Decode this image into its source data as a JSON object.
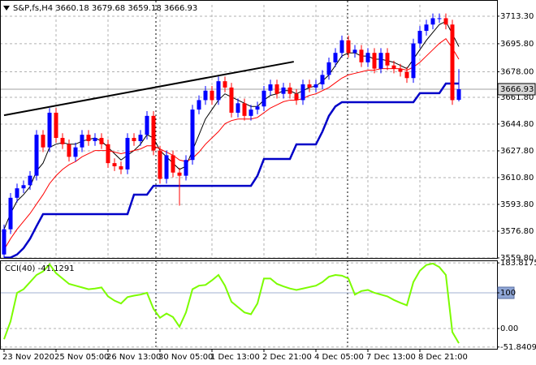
{
  "chart_data": [
    {
      "type": "candlestick",
      "title": "S&P,fs,H4  3660.18 3679.68 3659.18 3666.93",
      "categories": [
        "23 Nov 2020",
        null,
        null,
        null,
        null,
        null,
        null,
        null,
        "25 Nov 05:00",
        null,
        null,
        null,
        null,
        null,
        null,
        null,
        "26 Nov 13:00",
        null,
        null,
        null,
        null,
        null,
        null,
        null,
        "30 Nov 05:00",
        null,
        null,
        null,
        null,
        null,
        null,
        null,
        "1 Dec 13:00",
        null,
        null,
        null,
        null,
        null,
        null,
        null,
        "2 Dec 21:00",
        null,
        null,
        null,
        null,
        null,
        null,
        null,
        "4 Dec 05:00",
        null,
        null,
        null,
        null,
        null,
        null,
        null,
        "7 Dec 13:00",
        null,
        null,
        null,
        null,
        null,
        null,
        null,
        "8 Dec 21:00",
        null,
        null,
        null,
        null,
        null,
        null
      ],
      "open": [
        3562,
        3578,
        3598,
        3604,
        3606,
        3612,
        3638,
        3630,
        3652,
        3636,
        3632,
        3624,
        3630,
        3638,
        3634,
        3636,
        3632,
        3620,
        3618,
        3616,
        3636,
        3634,
        3638,
        3650,
        3628,
        3610,
        3625,
        3614,
        3612,
        3622,
        3654,
        3660,
        3666,
        3660,
        3672,
        3668,
        3652,
        3658,
        3650,
        3654,
        3656,
        3666,
        3670,
        3664,
        3668,
        3664,
        3660,
        3670,
        3668,
        3670,
        3676,
        3684,
        3690,
        3698,
        3690,
        3692,
        3684,
        3690,
        3680,
        3690,
        3682,
        3680,
        3678,
        3674,
        3696,
        3704,
        3708,
        3712,
        3712,
        3708,
        3660.18
      ],
      "high": [
        3581,
        3601,
        3607,
        3609,
        3615,
        3641,
        3641,
        3655,
        3655,
        3639,
        3635,
        3633,
        3641,
        3641,
        3639,
        3639,
        3635,
        3623,
        3621,
        3639,
        3639,
        3641,
        3653,
        3653,
        3631,
        3628,
        3628,
        3617,
        3625,
        3657,
        3663,
        3669,
        3669,
        3675,
        3675,
        3671,
        3661,
        3661,
        3657,
        3659,
        3669,
        3673,
        3673,
        3671,
        3671,
        3667,
        3673,
        3673,
        3673,
        3679,
        3687,
        3693,
        3701,
        3701,
        3695,
        3695,
        3693,
        3693,
        3693,
        3693,
        3685,
        3683,
        3681,
        3699,
        3707,
        3711,
        3715,
        3715,
        3715,
        3711,
        3679.68
      ],
      "low": [
        3559,
        3575,
        3595,
        3601,
        3603,
        3609,
        3627,
        3627,
        3633,
        3629,
        3621,
        3621,
        3627,
        3631,
        3631,
        3629,
        3617,
        3615,
        3613,
        3613,
        3631,
        3631,
        3635,
        3625,
        3607,
        3607,
        3611,
        3593,
        3609,
        3619,
        3651,
        3657,
        3657,
        3657,
        3665,
        3649,
        3649,
        3647,
        3647,
        3651,
        3653,
        3663,
        3661,
        3661,
        3661,
        3657,
        3657,
        3665,
        3665,
        3667,
        3673,
        3681,
        3687,
        3687,
        3687,
        3681,
        3681,
        3677,
        3677,
        3679,
        3677,
        3675,
        3671,
        3671,
        3693,
        3701,
        3705,
        3709,
        3705,
        3657,
        3659.18
      ],
      "close": [
        3578,
        3598,
        3604,
        3606,
        3612,
        3638,
        3630,
        3652,
        3636,
        3632,
        3624,
        3630,
        3638,
        3634,
        3636,
        3632,
        3620,
        3618,
        3616,
        3636,
        3634,
        3638,
        3650,
        3628,
        3610,
        3625,
        3614,
        3612,
        3622,
        3654,
        3660,
        3666,
        3660,
        3672,
        3668,
        3652,
        3658,
        3650,
        3654,
        3656,
        3666,
        3670,
        3664,
        3668,
        3664,
        3660,
        3670,
        3668,
        3670,
        3676,
        3684,
        3690,
        3698,
        3690,
        3692,
        3684,
        3690,
        3680,
        3690,
        3682,
        3680,
        3678,
        3674,
        3696,
        3704,
        3708,
        3712,
        3712,
        3708,
        3660,
        3666.93
      ],
      "up_color": "#0000ff",
      "down_color": "#ff0000",
      "lines": [
        {
          "color": "#000000",
          "width": 1,
          "values": [
            3578,
            3588,
            3596,
            3600,
            3605,
            3615,
            3620,
            3630,
            3632,
            3633,
            3632,
            3632,
            3634,
            3635,
            3636,
            3634,
            3630,
            3626,
            3622,
            3625,
            3628,
            3632,
            3638,
            3636,
            3628,
            3624,
            3620,
            3616,
            3618,
            3628,
            3638,
            3648,
            3654,
            3660,
            3664,
            3662,
            3660,
            3658,
            3656,
            3656,
            3660,
            3663,
            3664,
            3666,
            3666,
            3664,
            3666,
            3668,
            3669,
            3672,
            3676,
            3682,
            3688,
            3690,
            3690,
            3688,
            3688,
            3686,
            3686,
            3685,
            3684,
            3682,
            3680,
            3686,
            3692,
            3698,
            3703,
            3708,
            3710,
            3702,
            3694
          ]
        },
        {
          "color": "#ff0000",
          "width": 1,
          "values": [
            3565,
            3572,
            3578,
            3583,
            3588,
            3594,
            3600,
            3607,
            3612,
            3616,
            3619,
            3621,
            3624,
            3626,
            3628,
            3628,
            3628,
            3627,
            3626,
            3627,
            3628,
            3629,
            3631,
            3631,
            3629,
            3627,
            3625,
            3622,
            3621,
            3623,
            3627,
            3632,
            3636,
            3640,
            3645,
            3647,
            3648,
            3648,
            3648,
            3649,
            3652,
            3655,
            3657,
            3659,
            3660,
            3660,
            3661,
            3663,
            3664,
            3666,
            3668,
            3671,
            3674,
            3676,
            3677,
            3678,
            3679,
            3679,
            3680,
            3680,
            3680,
            3680,
            3679,
            3681,
            3684,
            3688,
            3692,
            3696,
            3699,
            3693,
            3686
          ]
        },
        {
          "color": "#0000c8",
          "width": 2.5,
          "values": [
            3560,
            3560,
            3562,
            3566,
            3572,
            3580,
            3587.6,
            3587.6,
            3587.6,
            3587.6,
            3587.6,
            3587.6,
            3587.6,
            3587.6,
            3587.6,
            3587.6,
            3587.6,
            3587.6,
            3587.6,
            3587.6,
            3600,
            3600,
            3600,
            3605.6,
            3605.6,
            3605.6,
            3605.6,
            3605.6,
            3605.6,
            3605.6,
            3605.6,
            3605.6,
            3605.6,
            3605.6,
            3605.6,
            3605.6,
            3605.6,
            3605.6,
            3605.6,
            3612,
            3622.6,
            3622.6,
            3622.6,
            3622.6,
            3622.6,
            3631.9,
            3631.9,
            3631.9,
            3631.9,
            3640,
            3650,
            3656,
            3658.7,
            3658.7,
            3658.7,
            3658.7,
            3658.7,
            3658.7,
            3658.7,
            3658.7,
            3658.7,
            3658.7,
            3658.7,
            3658.7,
            3664.4,
            3664.4,
            3664.4,
            3664.4,
            3670.5,
            3670.5,
            3670.5
          ]
        }
      ],
      "trendline": {
        "x": [
          0,
          44.6
        ],
        "values": [
          3650.4,
          3684.4
        ],
        "color": "#000000"
      },
      "current_price": {
        "value": 3666.93,
        "label": "3666.93"
      },
      "ylim": [
        3559.8,
        3721.0
      ],
      "yticks": [
        {
          "value": 3713.3,
          "label": "3713.30"
        },
        {
          "value": 3695.8,
          "label": "3695.80"
        },
        {
          "value": 3678.0,
          "label": "3678.00"
        },
        {
          "value": 3661.8,
          "label": "3661.80"
        },
        {
          "value": 3644.8,
          "label": "3644.80"
        },
        {
          "value": 3627.8,
          "label": "3627.80"
        },
        {
          "value": 3610.8,
          "label": "3610.80"
        },
        {
          "value": 3593.8,
          "label": "3593.80"
        },
        {
          "value": 3576.8,
          "label": "3576.80"
        },
        {
          "value": 3559.8,
          "label": "3559.80"
        }
      ],
      "grid": true
    },
    {
      "type": "line",
      "title": "CCI(40) -41.1291",
      "values": [
        -30,
        20,
        100,
        110,
        130,
        150,
        160,
        180,
        155,
        140,
        125,
        120,
        115,
        110,
        112,
        115,
        90,
        78,
        70,
        88,
        92,
        95,
        100,
        55,
        30,
        42,
        32,
        5,
        45,
        110,
        120,
        122,
        135,
        150,
        120,
        75,
        60,
        45,
        40,
        70,
        140,
        140,
        125,
        118,
        112,
        108,
        112,
        116,
        120,
        130,
        145,
        150,
        148,
        140,
        95,
        105,
        108,
        100,
        95,
        90,
        80,
        72,
        65,
        130,
        162,
        178,
        182,
        172,
        150,
        -10,
        -41.1291
      ],
      "color": "#7cfc00",
      "level": 100,
      "ylim": [
        -56.8,
        188.6
      ],
      "yticks": [
        {
          "value": 183.8175,
          "label": "183.8175"
        },
        100,
        {
          "value": 0,
          "label": "0.00"
        },
        {
          "value": -51.8409,
          "label": "-51.8409"
        }
      ],
      "grid": true
    }
  ]
}
